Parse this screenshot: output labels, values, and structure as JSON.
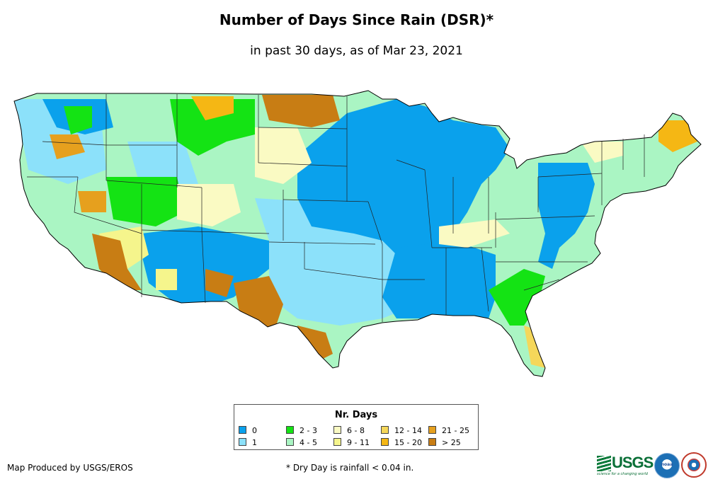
{
  "title": "Number of Days Since Rain (DSR)*",
  "subtitle": "in past 30 days, as of Mar 23, 2021",
  "legend": {
    "title": "Nr. Days",
    "items": [
      {
        "label": "0",
        "color": "#0aa1ec"
      },
      {
        "label": "1",
        "color": "#8ce1fa"
      },
      {
        "label": "2 - 3",
        "color": "#14e314"
      },
      {
        "label": "4 - 5",
        "color": "#aaf5c3"
      },
      {
        "label": "6 - 8",
        "color": "#fafac3"
      },
      {
        "label": "9 - 11",
        "color": "#f5f58c"
      },
      {
        "label": "12 - 14",
        "color": "#f5d75a"
      },
      {
        "label": "15 - 20",
        "color": "#f5b714"
      },
      {
        "label": "21 - 25",
        "color": "#e6a01e"
      },
      {
        "label": "> 25",
        "color": "#c87d14"
      }
    ]
  },
  "footer": {
    "credit": "Map Produced by USGS/EROS",
    "note": "* Dry Day is rainfall < 0.04 in."
  },
  "logos": {
    "usgs": "USGS",
    "usgs_tagline": "science for a changing world",
    "noaa": "noaa",
    "nws": "NATIONAL WEATHER SERVICE"
  }
}
